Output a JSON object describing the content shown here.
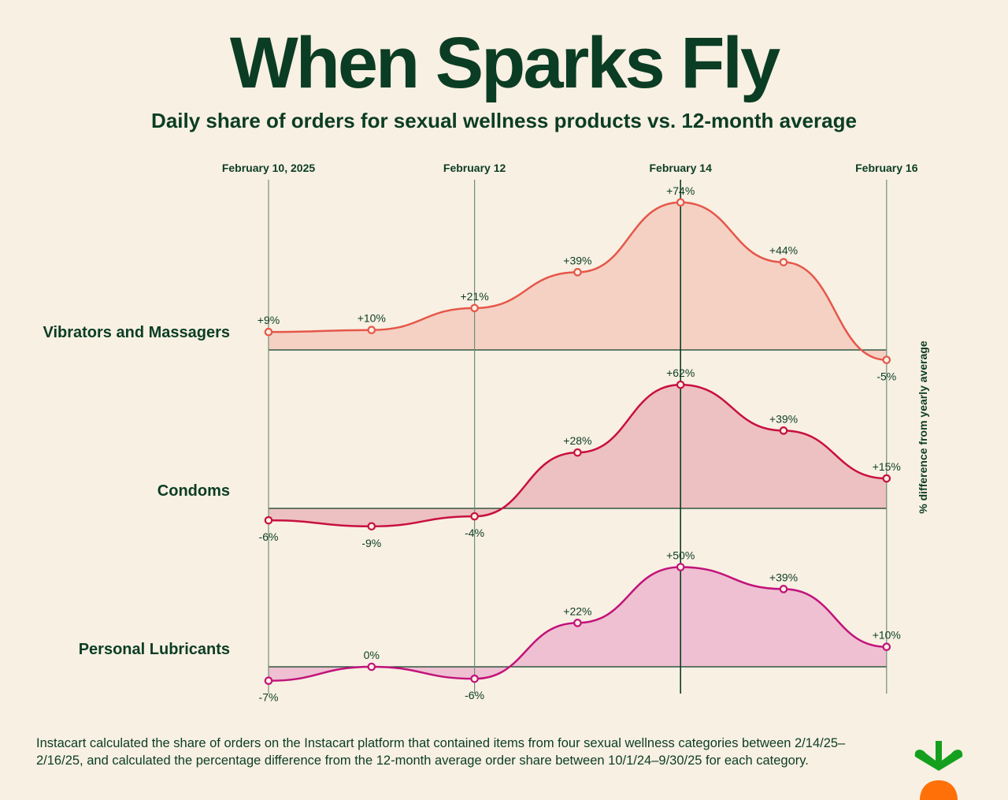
{
  "title": "When Sparks Fly",
  "subtitle": "Daily share of orders for sexual wellness products vs. 12-month average",
  "footnote": "Instacart calculated the share of orders on the Instacart platform that contained items from four sexual wellness categories between 2/14/25–2/16/25, and calculated the percentage difference from the 12-month average order share between 10/1/24–9/30/25 for each category.",
  "logo": "instacart-carrot-logo",
  "chart_data": {
    "type": "area",
    "title": "When Sparks Fly",
    "subtitle": "Daily share of orders for sexual wellness products vs. 12-month average",
    "ylabel": "% difference from yearly average",
    "x": [
      "2025-02-10",
      "2025-02-11",
      "2025-02-12",
      "2025-02-13",
      "2025-02-14",
      "2025-02-15",
      "2025-02-16"
    ],
    "x_tick_labels": [
      {
        "x": "2025-02-10",
        "label": "February 10, 2025"
      },
      {
        "x": "2025-02-12",
        "label": "February 12"
      },
      {
        "x": "2025-02-14",
        "label": "February 14",
        "emphasis": true
      },
      {
        "x": "2025-02-16",
        "label": "February 16"
      }
    ],
    "grid": "vertical lines at labeled dates",
    "series": [
      {
        "name": "Vibrators and Massagers",
        "values": [
          9,
          10,
          21,
          39,
          74,
          44,
          -5
        ],
        "labels": [
          "+9%",
          "+10%",
          "+21%",
          "+39%",
          "+74%",
          "+44%",
          "-5%"
        ],
        "line_color": "#e5574a",
        "fill_color": "#f5d1c4"
      },
      {
        "name": "Condoms",
        "values": [
          -6,
          -9,
          -4,
          28,
          62,
          39,
          15
        ],
        "labels": [
          "-6%",
          "-9%",
          "-4%",
          "+28%",
          "+62%",
          "+39%",
          "+15%"
        ],
        "line_color": "#c8103f",
        "fill_color": "#edc0c1"
      },
      {
        "name": "Personal Lubricants",
        "values": [
          -7,
          0,
          -6,
          22,
          50,
          39,
          10
        ],
        "labels": [
          "-7%",
          "0%",
          "-6%",
          "+22%",
          "+50%",
          "+39%",
          "+10%"
        ],
        "line_color": "#c2127a",
        "fill_color": "#eec0d1"
      }
    ]
  }
}
